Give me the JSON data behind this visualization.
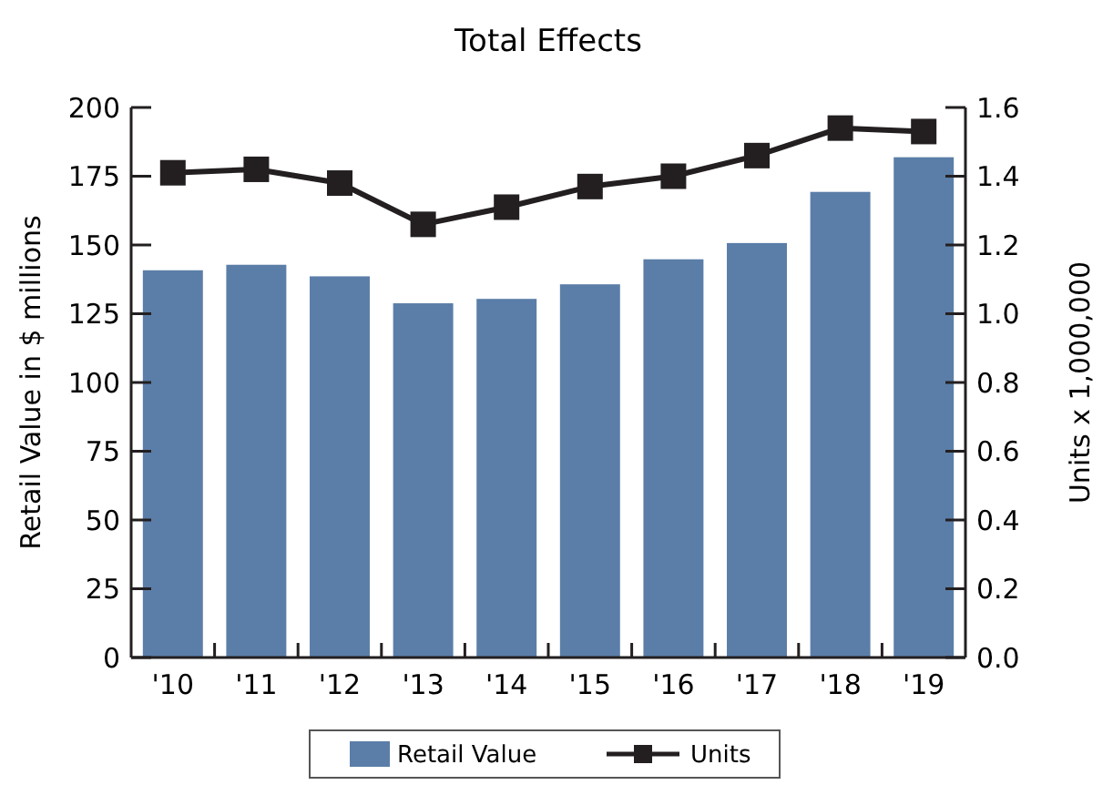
{
  "chart_data": {
    "type": "bar",
    "title": "Total Effects",
    "ylabel": "Retail Value in $ millions",
    "y2label": "Units x 1,000,000",
    "categories": [
      "'10",
      "'11",
      "'12",
      "'13",
      "'14",
      "'15",
      "'16",
      "'17",
      "'18",
      "'19"
    ],
    "series": [
      {
        "name": "Retail Value",
        "color": "#5b7ea8",
        "values": [
          140.8,
          142.8,
          138.6,
          128.8,
          130.4,
          135.7,
          144.8,
          150.7,
          169.3,
          181.9
        ]
      },
      {
        "name": "Units",
        "type": "line",
        "axis": "y2",
        "color": "#231f20",
        "marker": "square",
        "values": [
          1.41,
          1.42,
          1.38,
          1.26,
          1.31,
          1.37,
          1.4,
          1.46,
          1.54,
          1.53
        ]
      }
    ],
    "ylim": [
      0,
      200
    ],
    "yticks": [
      0,
      25,
      50,
      75,
      100,
      125,
      150,
      175,
      200
    ],
    "y2lim": [
      0,
      1.6
    ],
    "y2ticks": [
      {
        "value": 0,
        "label": "0.0"
      },
      {
        "value": 0.2,
        "label": "0.2"
      },
      {
        "value": 0.4,
        "label": "0.4"
      },
      {
        "value": 0.6,
        "label": "0.6"
      },
      {
        "value": 0.8,
        "label": "0.8"
      },
      {
        "value": 1,
        "label": "1.0"
      },
      {
        "value": 1.2,
        "label": "1.2"
      },
      {
        "value": 1.4,
        "label": "1.4"
      },
      {
        "value": 1.6,
        "label": "1.6"
      }
    ],
    "legend": "bottom"
  }
}
